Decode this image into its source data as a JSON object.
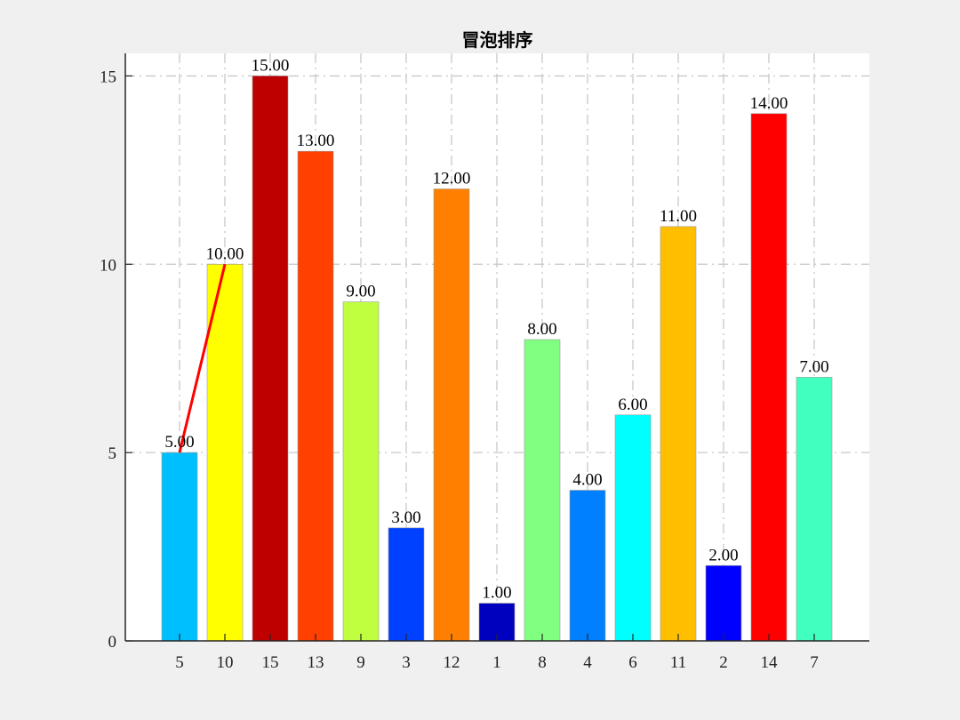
{
  "chart_data": {
    "type": "bar",
    "title": "冒泡排序",
    "xlabel": "",
    "ylabel": "",
    "categories": [
      "5",
      "10",
      "15",
      "13",
      "9",
      "3",
      "12",
      "1",
      "8",
      "4",
      "6",
      "11",
      "2",
      "14",
      "7"
    ],
    "values": [
      5,
      10,
      15,
      13,
      9,
      3,
      12,
      1,
      8,
      4,
      6,
      11,
      2,
      14,
      7
    ],
    "value_labels": [
      "5.00",
      "10.00",
      "15.00",
      "13.00",
      "9.00",
      "3.00",
      "12.00",
      "1.00",
      "8.00",
      "4.00",
      "6.00",
      "11.00",
      "2.00",
      "14.00",
      "7.00"
    ],
    "bar_colors": [
      "#00bfff",
      "#ffff00",
      "#bf0000",
      "#ff4000",
      "#bfff40",
      "#0040ff",
      "#ff8000",
      "#0000bf",
      "#80ff80",
      "#0080ff",
      "#00ffff",
      "#ffbf00",
      "#0000ff",
      "#ff0000",
      "#40ffbf"
    ],
    "yticks": [
      0,
      5,
      10,
      15
    ],
    "ylim": [
      0,
      15.6
    ],
    "grid": true,
    "grid_style": "dash-dot",
    "highlight_line": {
      "from_index": 0,
      "to_index": 1,
      "color": "#ff0000"
    }
  }
}
